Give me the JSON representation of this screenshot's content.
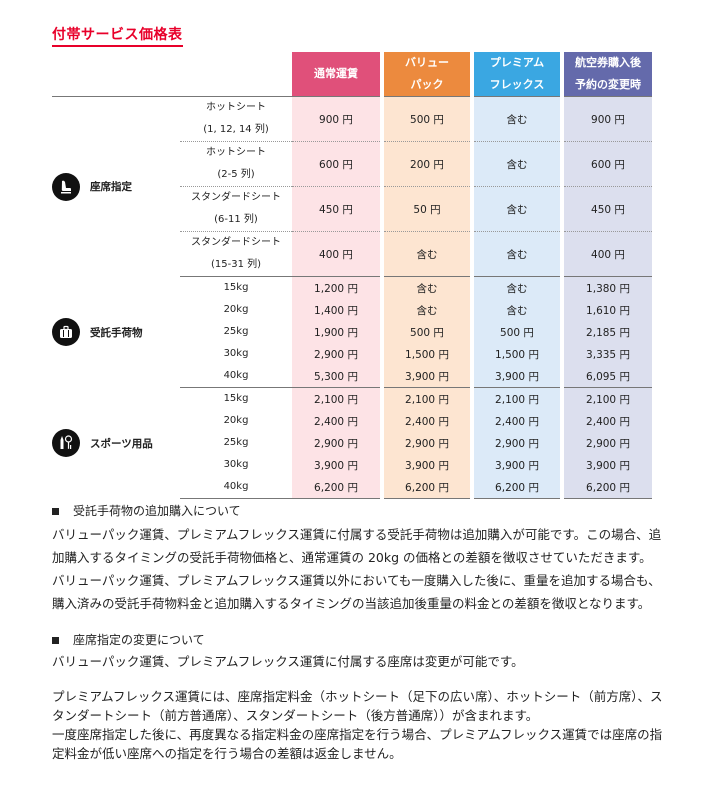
{
  "title": "付帯サービス価格表",
  "headers": [
    {
      "l1": "通常運賃",
      "l2": ""
    },
    {
      "l1": "バリュー",
      "l2": "パック"
    },
    {
      "l1": "プレミアム",
      "l2": "フレックス"
    },
    {
      "l1": "航空券購入後",
      "l2": "予約の変更時"
    }
  ],
  "seat": {
    "label": "座席指定",
    "icon": "seat-icon",
    "rows": [
      {
        "name": "ホットシート",
        "sub": "(1, 12, 14 列)",
        "v": [
          "900 円",
          "500 円",
          "含む",
          "900 円"
        ]
      },
      {
        "name": "ホットシート",
        "sub": "(2-5 列)",
        "v": [
          "600 円",
          "200 円",
          "含む",
          "600 円"
        ]
      },
      {
        "name": "スタンダードシート",
        "sub": "(6-11 列)",
        "v": [
          "450 円",
          "50 円",
          "含む",
          "450 円"
        ]
      },
      {
        "name": "スタンダードシート",
        "sub": "(15-31 列)",
        "v": [
          "400 円",
          "含む",
          "含む",
          "400 円"
        ]
      }
    ]
  },
  "baggage": {
    "label": "受託手荷物",
    "icon": "suitcase-icon",
    "rows": [
      {
        "w": "15kg",
        "v": [
          "1,200 円",
          "含む",
          "含む",
          "1,380 円"
        ]
      },
      {
        "w": "20kg",
        "v": [
          "1,400 円",
          "含む",
          "含む",
          "1,610 円"
        ]
      },
      {
        "w": "25kg",
        "v": [
          "1,900 円",
          "500 円",
          "500 円",
          "2,185 円"
        ]
      },
      {
        "w": "30kg",
        "v": [
          "2,900 円",
          "1,500 円",
          "1,500 円",
          "3,335 円"
        ]
      },
      {
        "w": "40kg",
        "v": [
          "5,300 円",
          "3,900 円",
          "3,900 円",
          "6,095 円"
        ]
      }
    ]
  },
  "sports": {
    "label": "スポーツ用品",
    "icon": "sports-equipment-icon",
    "rows": [
      {
        "w": "15kg",
        "v": [
          "2,100 円",
          "2,100 円",
          "2,100 円",
          "2,100 円"
        ]
      },
      {
        "w": "20kg",
        "v": [
          "2,400 円",
          "2,400 円",
          "2,400 円",
          "2,400 円"
        ]
      },
      {
        "w": "25kg",
        "v": [
          "2,900 円",
          "2,900 円",
          "2,900 円",
          "2,900 円"
        ]
      },
      {
        "w": "30kg",
        "v": [
          "3,900 円",
          "3,900 円",
          "3,900 円",
          "3,900 円"
        ]
      },
      {
        "w": "40kg",
        "v": [
          "6,200 円",
          "6,200 円",
          "6,200 円",
          "6,200 円"
        ]
      }
    ]
  },
  "notes": {
    "baggage_head": "受託手荷物の追加購入について",
    "baggage_body": "バリューパック運賃、プレミアムフレックス運賃に付属する受託手荷物は追加購入が可能です。この場合、追加購入するタイミングの受託手荷物価格と、通常運賃の 20kg の価格との差額を徴収させていただきます。バリューパック運賃、プレミアムフレックス運賃以外においても一度購入した後に、重量を追加する場合も、購入済みの受託手荷物料金と追加購入するタイミングの当該追加後重量の料金との差額を徴収となります。",
    "seat_head": "座席指定の変更について",
    "seat_body1": "バリューパック運賃、プレミアムフレックス運賃に付属する座席は変更が可能です。",
    "seat_body2": "プレミアムフレックス運賃には、座席指定料金（ホットシート（足下の広い席）、ホットシート（前方席）、スタンダートシート（前方普通席）、スタンダートシート（後方普通席））が含まれます。",
    "seat_body3": "一度座席指定した後に、再度異なる指定料金の座席指定を行う場合、プレミアムフレックス運賃では座席の指定料金が低い座席への指定を行う場合の差額は返金しません。"
  }
}
